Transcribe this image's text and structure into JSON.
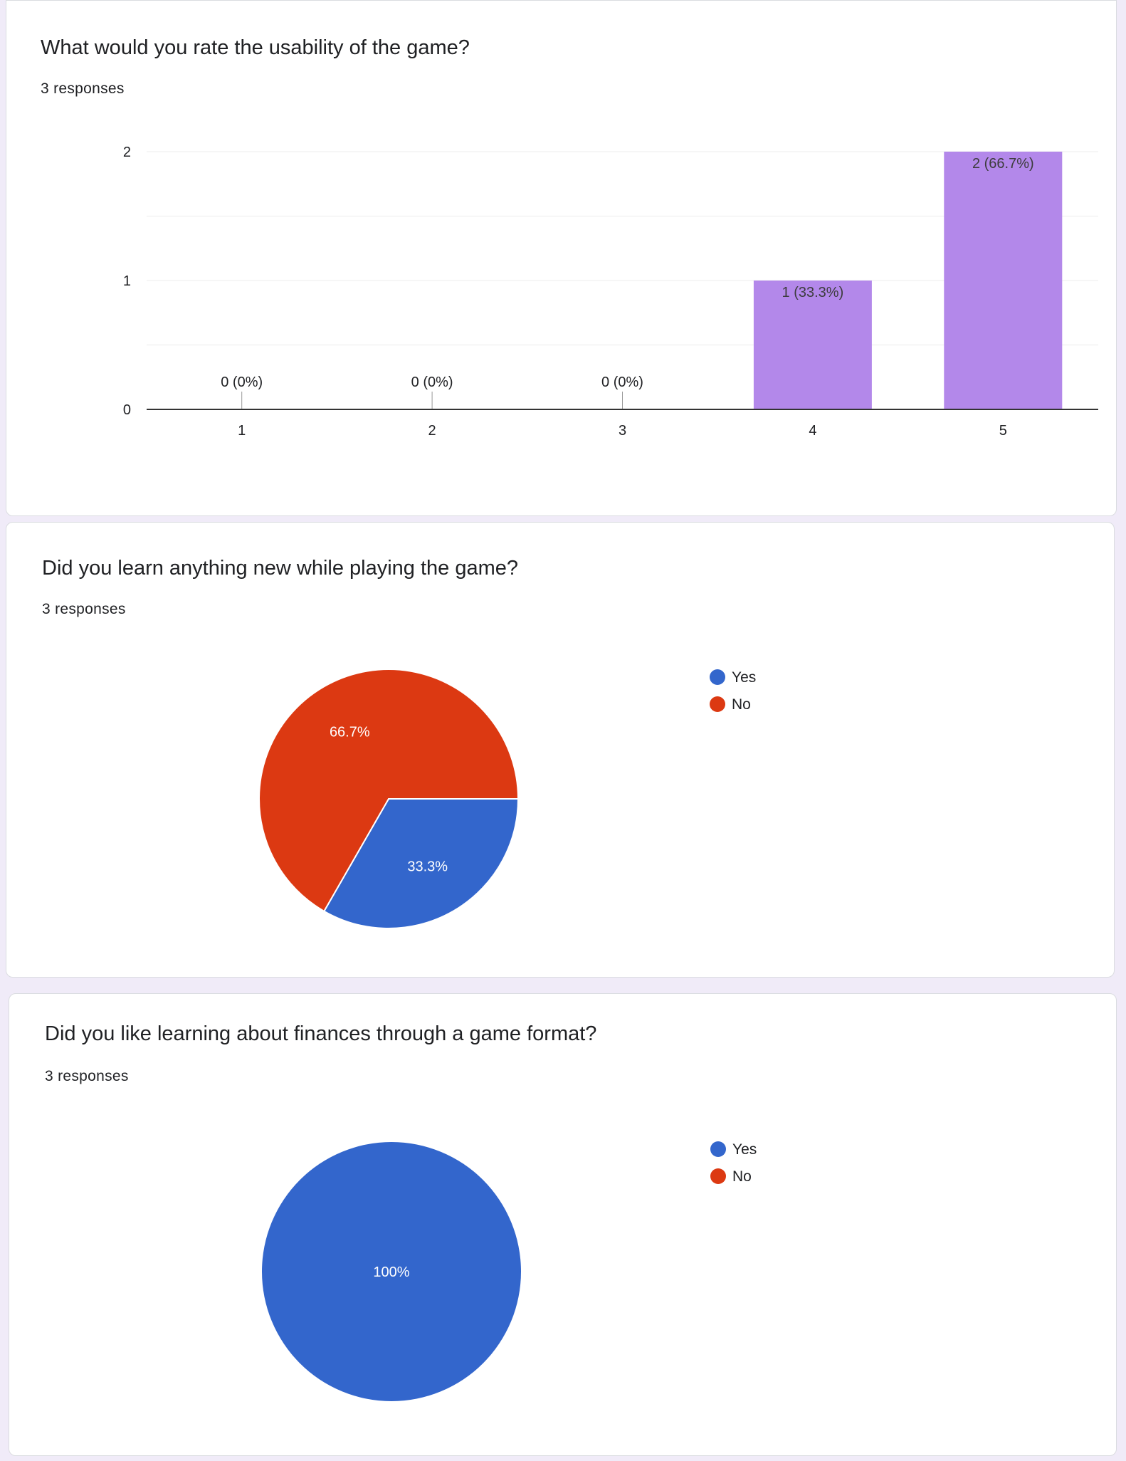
{
  "questions": [
    {
      "title": "What would you rate the usability of the game?",
      "responses": "3 responses"
    },
    {
      "title": "Did you learn anything new while playing the game?",
      "responses": "3 responses"
    },
    {
      "title": "Did you like learning about finances through a game format?",
      "responses": "3 responses"
    }
  ],
  "colors": {
    "bar": "#b388ea",
    "yes": "#3366cc",
    "no": "#dc3912",
    "background": "#f0ebf8"
  },
  "chart_data": [
    {
      "type": "bar",
      "categories": [
        "1",
        "2",
        "3",
        "4",
        "5"
      ],
      "values": [
        0,
        0,
        0,
        1,
        2
      ],
      "data_labels": [
        "0 (0%)",
        "0 (0%)",
        "0 (0%)",
        "1 (33.3%)",
        "2 (66.7%)"
      ],
      "yticks": [
        "0",
        "1",
        "2"
      ],
      "ylim": [
        0,
        2
      ],
      "grid": true
    },
    {
      "type": "pie",
      "labels": [
        "Yes",
        "No"
      ],
      "values": [
        33.3,
        66.7
      ],
      "slice_labels": [
        "33.3%",
        "66.7%"
      ],
      "legend": [
        "Yes",
        "No"
      ],
      "legend_position": "right"
    },
    {
      "type": "pie",
      "labels": [
        "Yes",
        "No"
      ],
      "values": [
        100,
        0
      ],
      "slice_labels": [
        "100%"
      ],
      "legend": [
        "Yes",
        "No"
      ],
      "legend_position": "right"
    }
  ]
}
